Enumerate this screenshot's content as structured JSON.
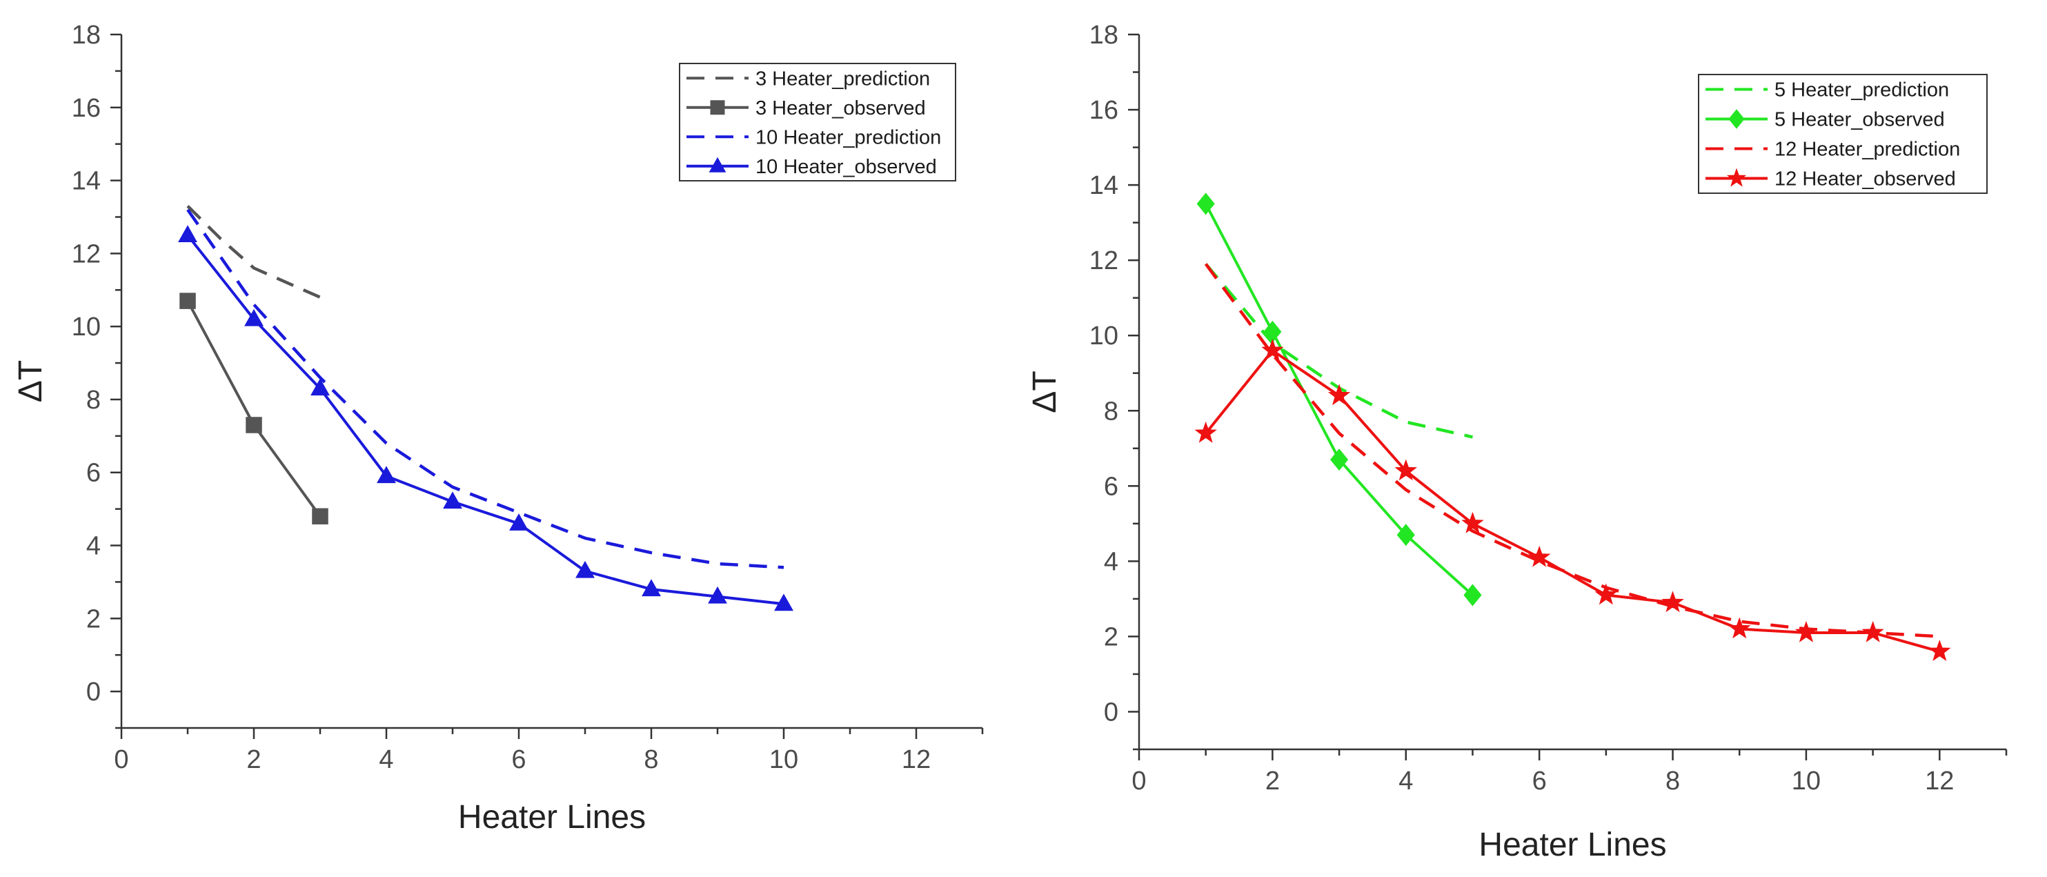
{
  "chart_data": [
    {
      "type": "line",
      "title": "",
      "xlabel": "Heater Lines",
      "ylabel": "ΔT",
      "xlim": [
        0,
        13
      ],
      "ylim": [
        -1,
        18
      ],
      "xticks": [
        0,
        2,
        4,
        6,
        8,
        10,
        12
      ],
      "yticks": [
        0,
        2,
        4,
        6,
        8,
        10,
        12,
        14,
        16,
        18
      ],
      "grid": false,
      "legend_position": "top-right",
      "series": [
        {
          "name": "3 Heater_prediction",
          "style": "dashed",
          "marker": "none",
          "color": "#555555",
          "x": [
            1,
            1.5,
            2,
            2.5,
            3
          ],
          "y": [
            13.3,
            12.4,
            11.6,
            11.2,
            10.8
          ]
        },
        {
          "name": "3 Heater_observed",
          "style": "solid",
          "marker": "square",
          "color": "#555555",
          "x": [
            1,
            2,
            3
          ],
          "y": [
            10.7,
            7.3,
            4.8
          ]
        },
        {
          "name": "10 Heater_prediction",
          "style": "dashed",
          "marker": "none",
          "color": "#1a1adb",
          "x": [
            1,
            2,
            3,
            4,
            5,
            6,
            7,
            8,
            9,
            10
          ],
          "y": [
            13.2,
            10.6,
            8.6,
            6.8,
            5.6,
            4.9,
            4.2,
            3.8,
            3.5,
            3.4
          ]
        },
        {
          "name": "10 Heater_observed",
          "style": "solid",
          "marker": "triangle",
          "color": "#1a1adb",
          "x": [
            1,
            2,
            3,
            4,
            5,
            6,
            7,
            8,
            9,
            10
          ],
          "y": [
            12.5,
            10.2,
            8.3,
            5.9,
            5.2,
            4.6,
            3.3,
            2.8,
            2.6,
            2.4
          ]
        }
      ]
    },
    {
      "type": "line",
      "title": "",
      "xlabel": "Heater Lines",
      "ylabel": "ΔT",
      "xlim": [
        0,
        13
      ],
      "ylim": [
        -1,
        18
      ],
      "xticks": [
        0,
        2,
        4,
        6,
        8,
        10,
        12
      ],
      "yticks": [
        0,
        2,
        4,
        6,
        8,
        10,
        12,
        14,
        16,
        18
      ],
      "grid": false,
      "legend_position": "top-right",
      "series": [
        {
          "name": "5 Heater_prediction",
          "style": "dashed",
          "marker": "none",
          "color": "#22e622",
          "x": [
            1,
            2,
            3,
            4,
            5
          ],
          "y": [
            11.9,
            9.8,
            8.6,
            7.7,
            7.3
          ]
        },
        {
          "name": "5 Heater_observed",
          "style": "solid",
          "marker": "diamond",
          "color": "#22e622",
          "x": [
            1,
            2,
            3,
            4,
            5
          ],
          "y": [
            13.5,
            10.1,
            6.7,
            4.7,
            3.1
          ]
        },
        {
          "name": "12 Heater_prediction",
          "style": "dashed",
          "marker": "none",
          "color": "#ee1111",
          "x": [
            1,
            2,
            3,
            4,
            5,
            6,
            7,
            8,
            9,
            10,
            11,
            12
          ],
          "y": [
            11.9,
            9.5,
            7.4,
            5.9,
            4.8,
            4.0,
            3.3,
            2.8,
            2.4,
            2.2,
            2.1,
            2.0
          ]
        },
        {
          "name": "12 Heater_observed",
          "style": "solid",
          "marker": "star",
          "color": "#ee1111",
          "x": [
            1,
            2,
            3,
            4,
            5,
            6,
            7,
            8,
            9,
            10,
            11,
            12
          ],
          "y": [
            7.4,
            9.6,
            8.4,
            6.4,
            5.0,
            4.1,
            3.1,
            2.9,
            2.2,
            2.1,
            2.1,
            1.6
          ]
        }
      ]
    }
  ]
}
